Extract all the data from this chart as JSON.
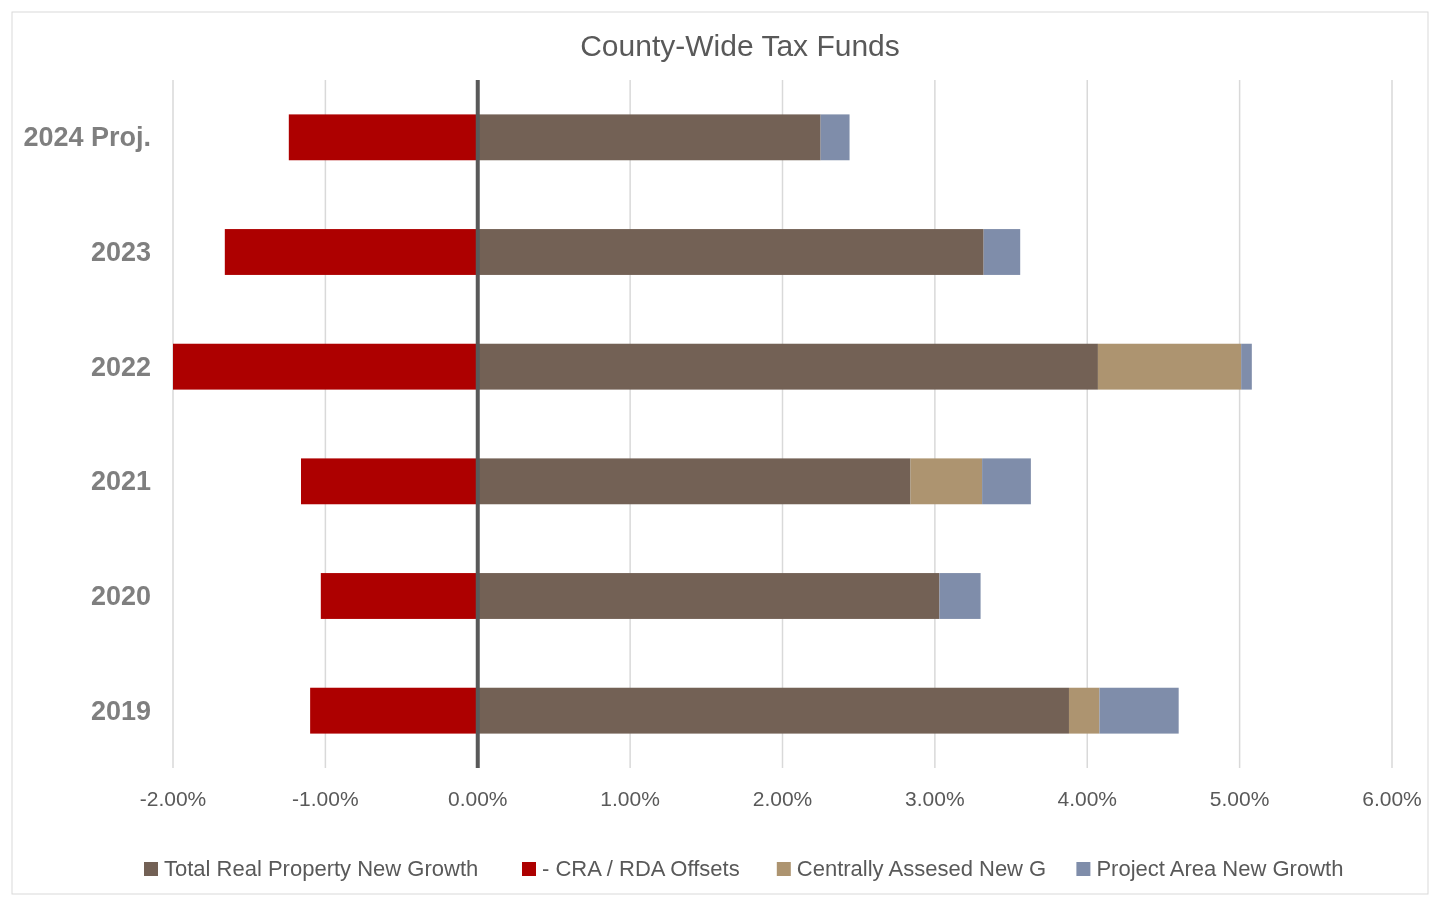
{
  "chart_data": {
    "type": "bar",
    "title": "County-Wide Tax Funds",
    "orientation": "horizontal",
    "stacked": true,
    "categories": [
      "2024 Proj.",
      "2023",
      "2022",
      "2021",
      "2020",
      "2019"
    ],
    "series": [
      {
        "name": "Total Real Property New Growth",
        "color": "#736155",
        "values": [
          2.25,
          3.32,
          4.07,
          2.84,
          3.03,
          3.88
        ]
      },
      {
        "name": "- CRA / RDA Offsets",
        "color": "#ad0000",
        "values": [
          -1.24,
          -1.66,
          -2,
          -1.16,
          -1.03,
          -1.1
        ]
      },
      {
        "name": "Centrally Assesed New G",
        "color": "#ad9470",
        "values": [
          null,
          null,
          0.94,
          0.47,
          null,
          0.2
        ]
      },
      {
        "name": "Project Area New Growth",
        "color": "#7f8daa",
        "values": [
          0.19,
          0.24,
          0.07,
          0.32,
          0.27,
          0.52
        ]
      }
    ],
    "xlim": [
      -2,
      6
    ],
    "xticks": [
      {
        "value": -2,
        "label": "-2.00%"
      },
      {
        "value": -1,
        "label": "-1.00%"
      },
      {
        "value": 0,
        "label": "0.00%"
      },
      {
        "value": 1,
        "label": "1.00%"
      },
      {
        "value": 2,
        "label": "2.00%"
      },
      {
        "value": 3,
        "label": "3.00%"
      },
      {
        "value": 4,
        "label": "4.00%"
      },
      {
        "value": 5,
        "label": "5.00%"
      },
      {
        "value": 6,
        "label": "6.00%"
      }
    ],
    "grid": "x",
    "legend": "bottom"
  }
}
